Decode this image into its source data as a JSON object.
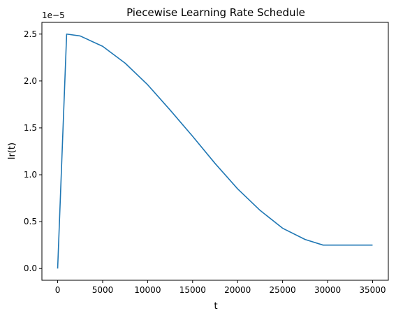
{
  "chart_data": {
    "type": "line",
    "title": "Piecewise Learning Rate Schedule",
    "xlabel": "t",
    "ylabel": "lr(t)",
    "y_offset_label": "1e−5",
    "xlim": [
      -1750,
      36750
    ],
    "ylim": [
      -0.125,
      2.625
    ],
    "xticks": [
      0,
      5000,
      10000,
      15000,
      20000,
      25000,
      30000,
      35000
    ],
    "xtick_labels": [
      "0",
      "5000",
      "10000",
      "15000",
      "20000",
      "25000",
      "30000",
      "35000"
    ],
    "yticks": [
      0.0,
      0.5,
      1.0,
      1.5,
      2.0,
      2.5
    ],
    "ytick_labels": [
      "0.0",
      "0.5",
      "1.0",
      "1.5",
      "2.0",
      "2.5"
    ],
    "grid": false,
    "series": [
      {
        "color": "#1f77b4",
        "x": [
          0,
          1000,
          2500,
          5000,
          7500,
          10000,
          12500,
          15000,
          17500,
          20000,
          22500,
          25000,
          27500,
          29500,
          30000,
          35000
        ],
        "y": [
          0.0,
          2.5,
          2.48,
          2.37,
          2.19,
          1.96,
          1.69,
          1.41,
          1.12,
          0.85,
          0.62,
          0.43,
          0.31,
          0.25,
          0.25,
          0.25
        ]
      }
    ]
  }
}
